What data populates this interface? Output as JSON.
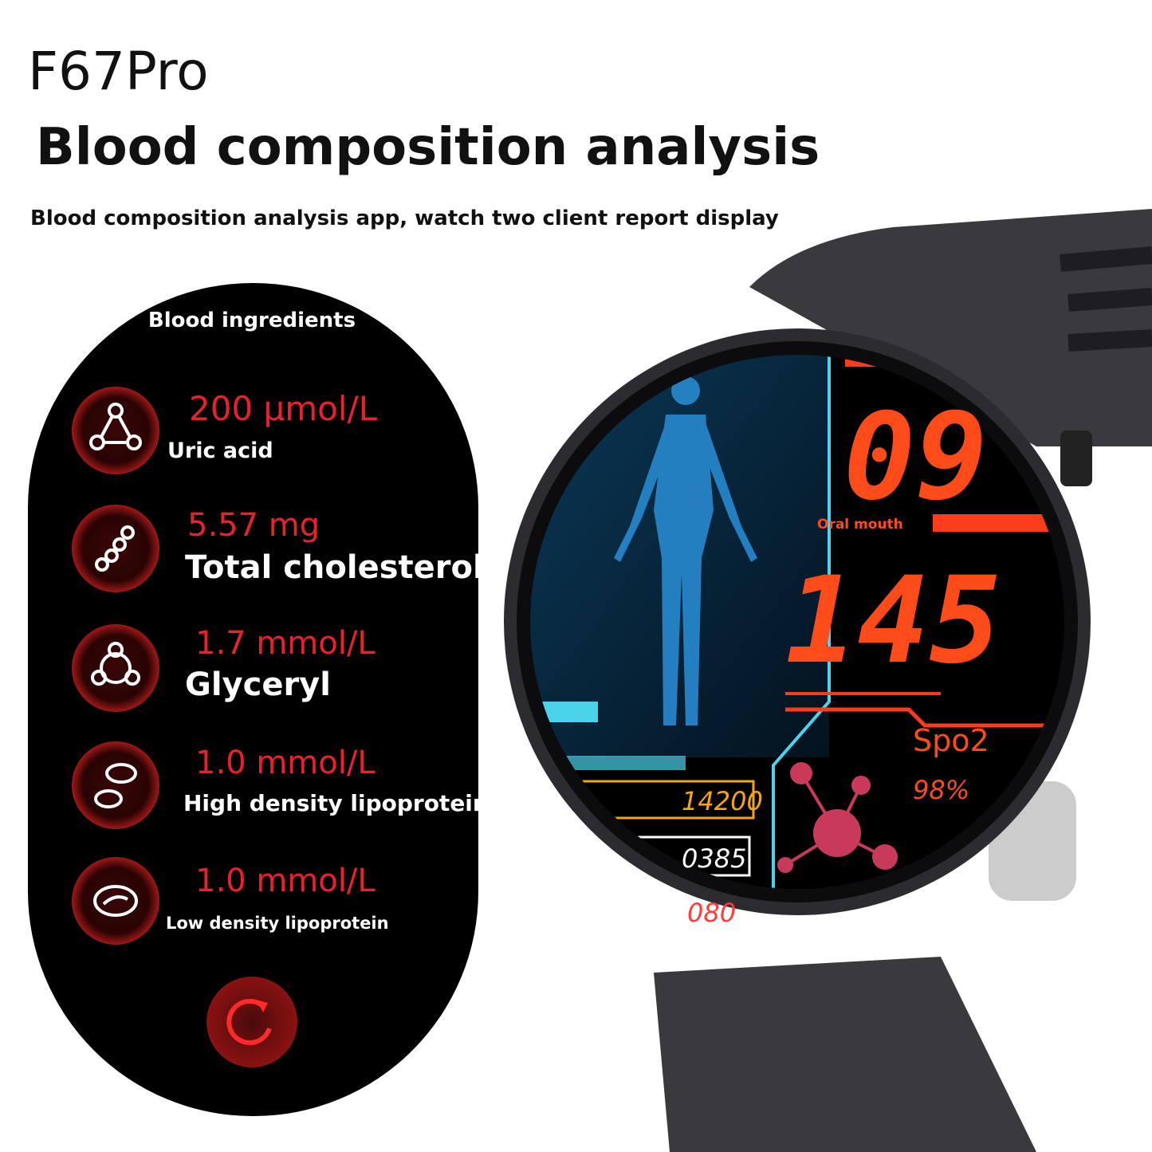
{
  "header": {
    "model": "F67Pro",
    "title": "Blood composition analysis",
    "subtitle": "Blood composition analysis app, watch two client report display"
  },
  "panel": {
    "title": "Blood ingredients",
    "items": [
      {
        "value": "200 μmol/L",
        "label": "Uric acid"
      },
      {
        "value": "5.57 mg",
        "label": "Total cholesterol"
      },
      {
        "value": "1.7 mmol/L",
        "label": "Glyceryl"
      },
      {
        "value": "1.0 mmol/L",
        "label": "High density lipoprotein"
      },
      {
        "value": "1.0 mmol/L",
        "label": "Low density lipoprotein"
      }
    ]
  },
  "watch": {
    "hour": "09",
    "mode": "Oral mouth",
    "reading": "145",
    "spo2_label": "Spo2",
    "spo2": "98%",
    "steps": "14200",
    "calories": "0385",
    "heart_rate": "080"
  }
}
